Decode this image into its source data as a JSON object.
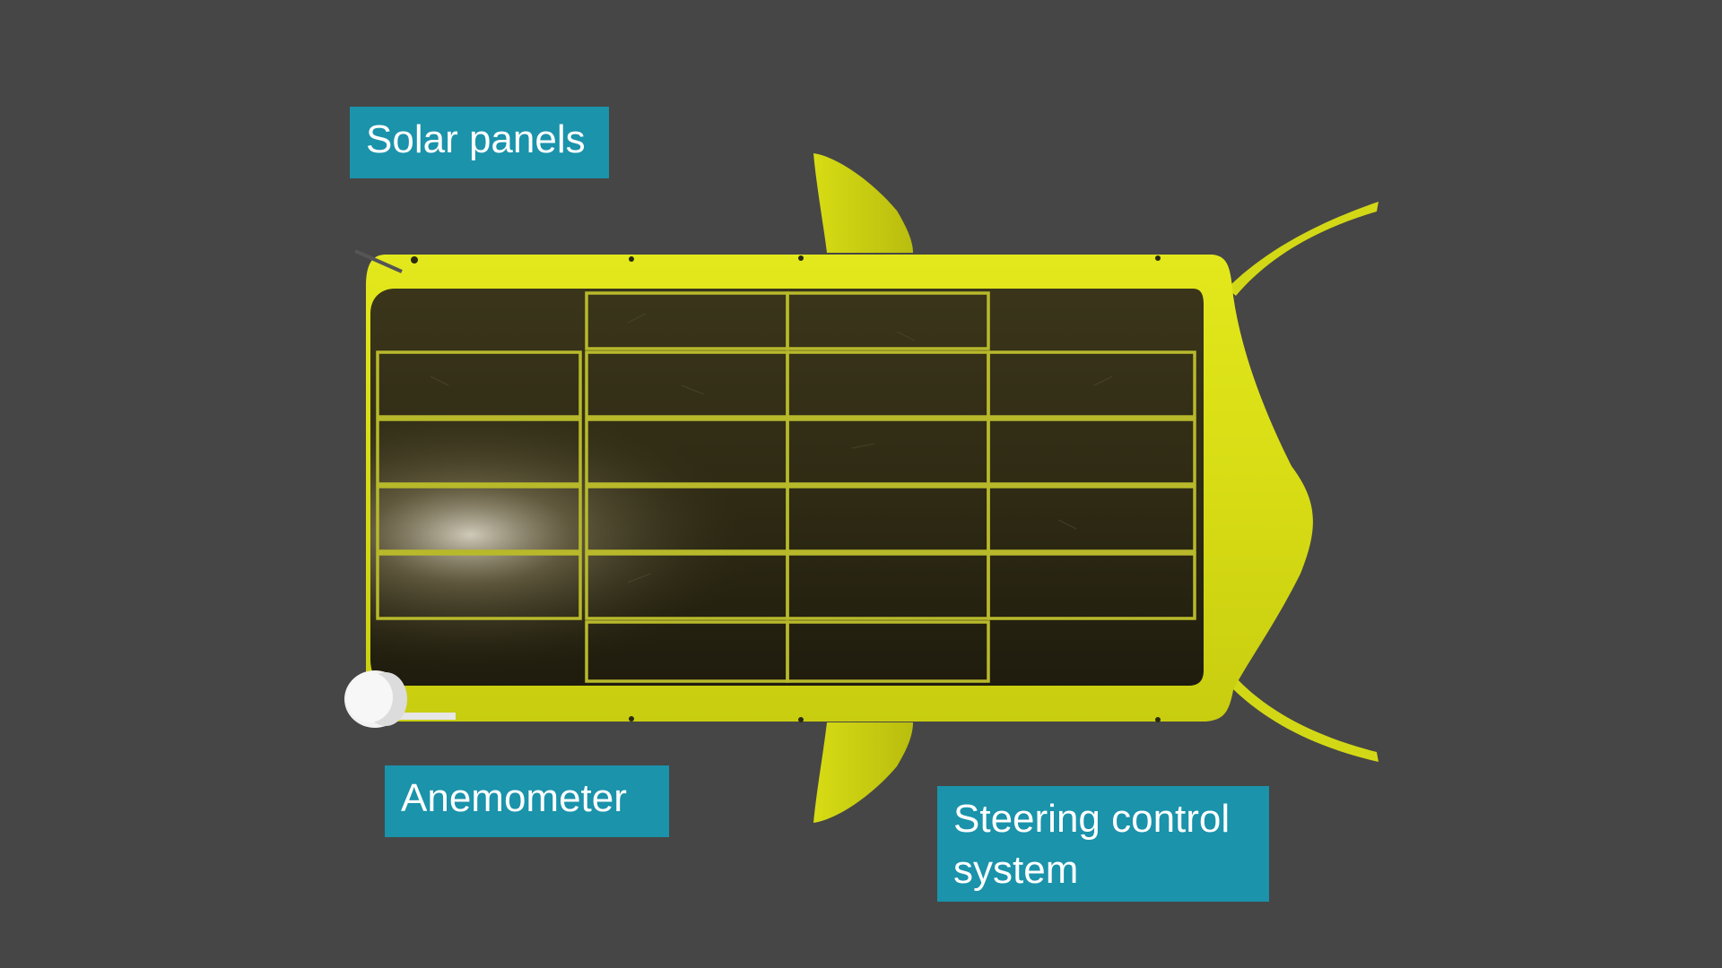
{
  "labels": {
    "solar_panels": "Solar panels",
    "anemometer": "Anemometer",
    "steering_line1": "Steering control",
    "steering_line2": "system"
  },
  "colors": {
    "background": "#464646",
    "label_fill": "#1a93ab",
    "label_text": "#ffffff",
    "hull": "#d6dc16",
    "panel": "#2b2810",
    "panel_grid": "#b7b82a",
    "anemometer": "#f0f0f0"
  },
  "icons": {
    "anemometer": "anemometer-icon",
    "vessel": "solar-drone-vessel",
    "keel": "keel-fin-icon",
    "rudder": "rudder-icon"
  },
  "panel_grid": {
    "columns": 4,
    "rows": 6
  }
}
